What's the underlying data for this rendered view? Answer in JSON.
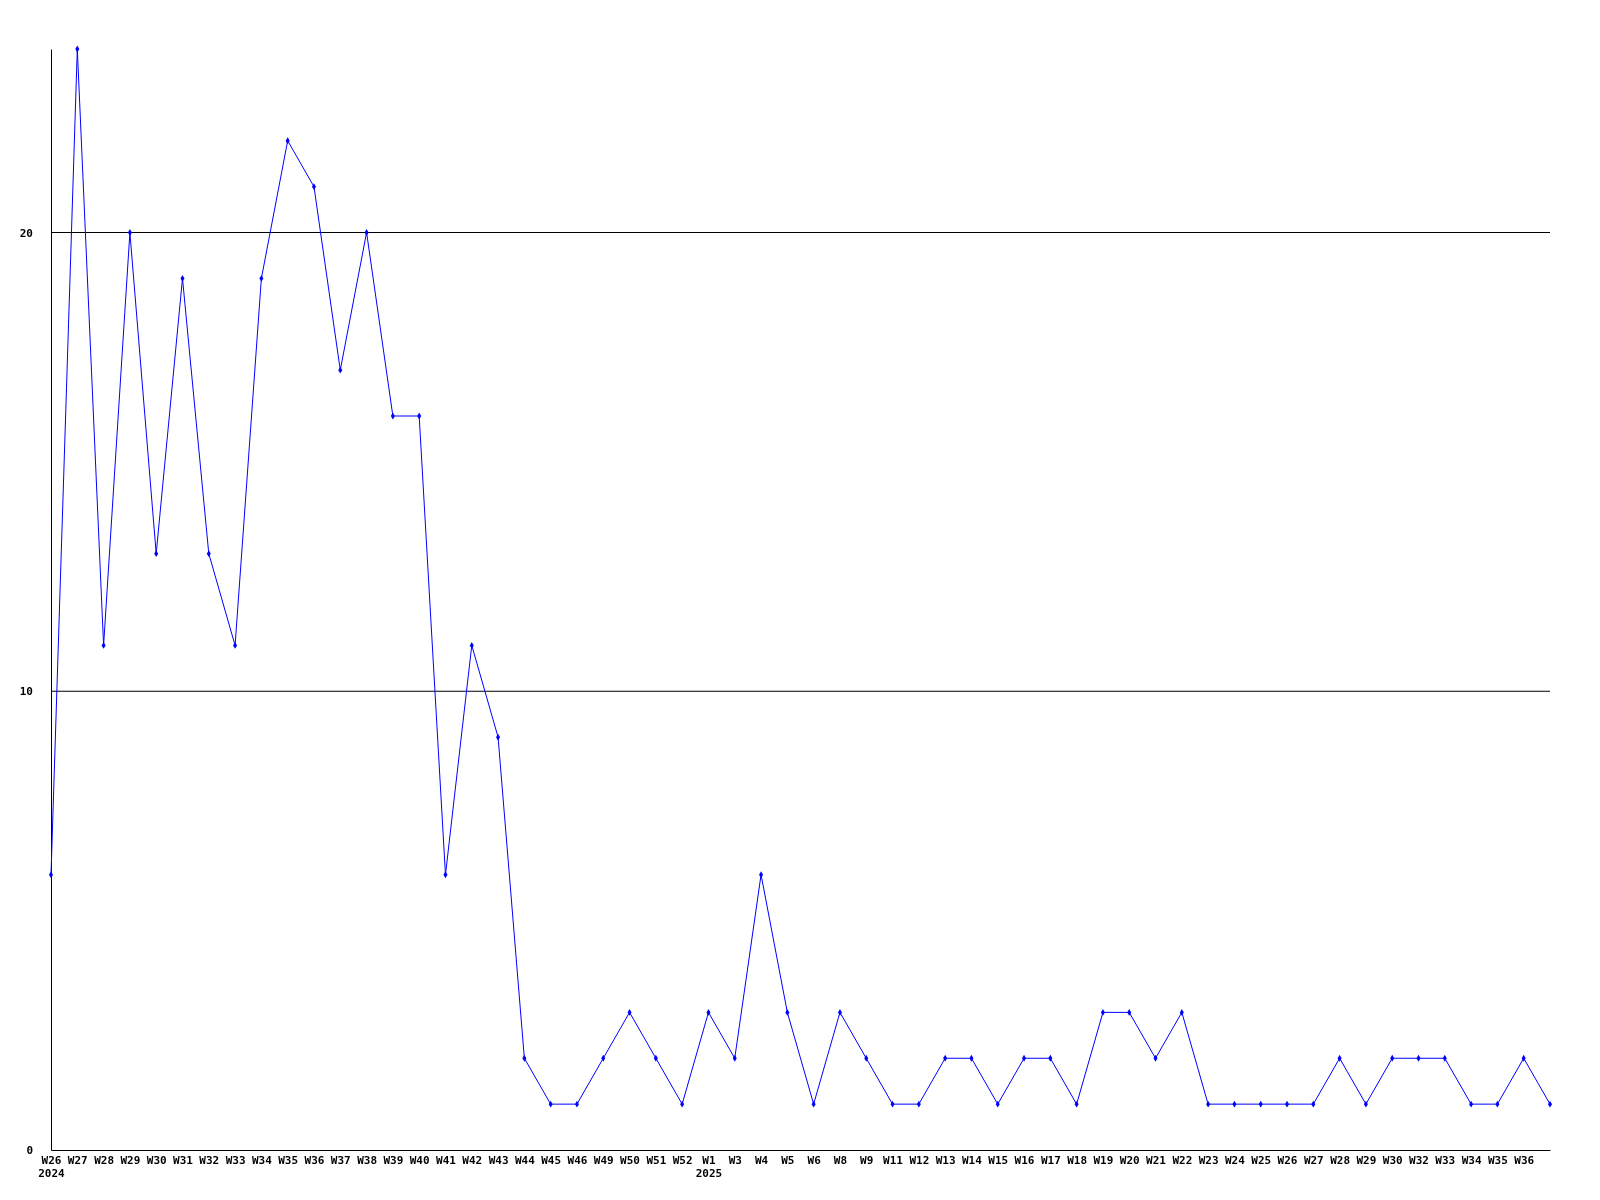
{
  "chart_data": {
    "type": "line",
    "categories": [
      "W26\n2024",
      "W27",
      "W28",
      "W29",
      "W30",
      "W31",
      "W32",
      "W33",
      "W34",
      "W35",
      "W36",
      "W37",
      "W38",
      "W39",
      "W40",
      "W41",
      "W42",
      "W43",
      "W44",
      "W45",
      "W46",
      "W49",
      "W50",
      "W51",
      "W52",
      "W1\n2025",
      "W3",
      "W4",
      "W5",
      "W6",
      "W8",
      "W9",
      "W11",
      "W12",
      "W13",
      "W14",
      "W15",
      "W16",
      "W17",
      "W18",
      "W19",
      "W20",
      "W21",
      "W22",
      "W23",
      "W24",
      "W25",
      "W26",
      "W27",
      "W28",
      "W29",
      "W30",
      "W32",
      "W33",
      "W34",
      "W35",
      "W36",
      null
    ],
    "series": [
      {
        "color": "#0000ff",
        "values": [
          6,
          24,
          11,
          20,
          13,
          19,
          13,
          11,
          19,
          22,
          21,
          17,
          20,
          16,
          16,
          6,
          11,
          9,
          2,
          1,
          1,
          2,
          3,
          2,
          1,
          3,
          2,
          6,
          3,
          1,
          3,
          2,
          1,
          1,
          2,
          2,
          1,
          2,
          2,
          1,
          3,
          3,
          2,
          3,
          1,
          1,
          1,
          1,
          1,
          2,
          1,
          2,
          2,
          2,
          1,
          1,
          2,
          1
        ]
      }
    ],
    "ylim": [
      0,
      24
    ],
    "yticks": [
      0,
      10,
      20
    ],
    "grid": "y",
    "marker": "diamond",
    "line_style": "solid"
  }
}
